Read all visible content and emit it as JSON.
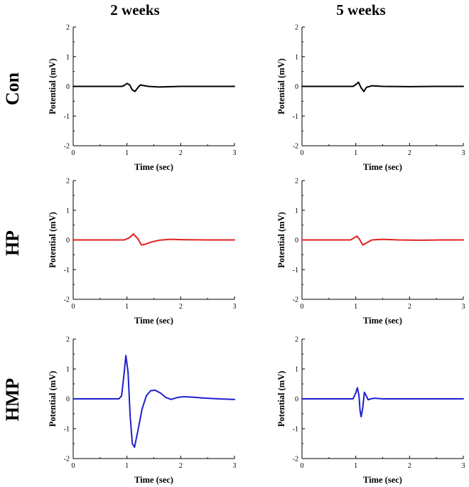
{
  "figure": {
    "column_titles": [
      "2 weeks",
      "5 weeks"
    ],
    "row_titles": [
      "Con",
      "HP",
      "HMP"
    ]
  },
  "chart_data": [
    {
      "type": "line",
      "panel": "Con - 2 weeks",
      "xlabel": "Time (sec)",
      "ylabel": "Potential (mV)",
      "xlim": [
        0,
        3
      ],
      "ylim": [
        -2,
        2
      ],
      "grid": false,
      "x_ticks": [
        0,
        1,
        2,
        3
      ],
      "y_ticks": [
        -2,
        -1,
        0,
        1,
        2
      ],
      "color": "#000000",
      "series": [
        {
          "x": [
            0,
            0.9,
            0.95,
            1.0,
            1.05,
            1.1,
            1.15,
            1.2,
            1.25,
            1.3,
            1.4,
            1.6,
            2.0,
            2.5,
            3.0
          ],
          "values": [
            0,
            0,
            0.03,
            0.1,
            0.05,
            -0.12,
            -0.17,
            -0.05,
            0.05,
            0.03,
            0,
            -0.02,
            0,
            0,
            0
          ]
        }
      ]
    },
    {
      "type": "line",
      "panel": "Con - 5 weeks",
      "xlabel": "Time (sec)",
      "ylabel": "Potential (mV)",
      "xlim": [
        0,
        3
      ],
      "ylim": [
        -2,
        2
      ],
      "grid": false,
      "x_ticks": [
        0,
        1,
        2,
        3
      ],
      "y_ticks": [
        -2,
        -1,
        0,
        1,
        2
      ],
      "color": "#000000",
      "series": [
        {
          "x": [
            0,
            0.95,
            1.0,
            1.05,
            1.1,
            1.15,
            1.2,
            1.3,
            1.5,
            2.0,
            2.5,
            3.0
          ],
          "values": [
            0,
            0,
            0.06,
            0.14,
            -0.05,
            -0.17,
            -0.03,
            0.02,
            0,
            -0.01,
            0,
            0
          ]
        }
      ]
    },
    {
      "type": "line",
      "panel": "HP - 2 weeks",
      "xlabel": "Time (sec)",
      "ylabel": "Potential (mV)",
      "xlim": [
        0,
        3
      ],
      "ylim": [
        -2,
        2
      ],
      "grid": false,
      "x_ticks": [
        0,
        1,
        2,
        3
      ],
      "y_ticks": [
        -2,
        -1,
        0,
        1,
        2
      ],
      "color": "#e02020",
      "series": [
        {
          "x": [
            0,
            0.95,
            1.05,
            1.12,
            1.2,
            1.27,
            1.35,
            1.45,
            1.6,
            1.8,
            2.0,
            2.5,
            3.0
          ],
          "values": [
            0,
            0,
            0.08,
            0.2,
            0.05,
            -0.17,
            -0.14,
            -0.07,
            -0.01,
            0.02,
            0.01,
            0,
            0
          ]
        }
      ]
    },
    {
      "type": "line",
      "panel": "HP - 5 weeks",
      "xlabel": "Time (sec)",
      "ylabel": "Potential (mV)",
      "xlim": [
        0,
        3
      ],
      "ylim": [
        -2,
        2
      ],
      "grid": false,
      "x_ticks": [
        0,
        1,
        2,
        3
      ],
      "y_ticks": [
        -2,
        -1,
        0,
        1,
        2
      ],
      "color": "#e02020",
      "series": [
        {
          "x": [
            0,
            0.9,
            0.97,
            1.02,
            1.07,
            1.13,
            1.2,
            1.3,
            1.5,
            1.8,
            2.2,
            2.6,
            3.0
          ],
          "values": [
            0,
            0,
            0.07,
            0.13,
            0.02,
            -0.17,
            -0.1,
            0,
            0.02,
            0,
            -0.01,
            0,
            0
          ]
        }
      ]
    },
    {
      "type": "line",
      "panel": "HMP - 2 weeks",
      "xlabel": "Time (sec)",
      "ylabel": "Potential (mV)",
      "xlim": [
        0,
        3
      ],
      "ylim": [
        -2,
        2
      ],
      "grid": false,
      "x_ticks": [
        0,
        1,
        2,
        3
      ],
      "y_ticks": [
        -2,
        -1,
        0,
        1,
        2
      ],
      "color": "#1f1fd0",
      "series": [
        {
          "x": [
            0,
            0.85,
            0.9,
            0.95,
            0.98,
            1.02,
            1.06,
            1.1,
            1.14,
            1.2,
            1.28,
            1.36,
            1.44,
            1.52,
            1.62,
            1.72,
            1.82,
            1.95,
            2.05,
            2.2,
            2.4,
            2.7,
            3.0
          ],
          "values": [
            0,
            0,
            0.1,
            0.9,
            1.45,
            0.9,
            -0.6,
            -1.5,
            -1.62,
            -1.1,
            -0.35,
            0.1,
            0.27,
            0.29,
            0.2,
            0.05,
            -0.02,
            0.05,
            0.07,
            0.06,
            0.03,
            0,
            -0.02
          ]
        }
      ]
    },
    {
      "type": "line",
      "panel": "HMP - 5 weeks",
      "xlabel": "Time (sec)",
      "ylabel": "Potential (mV)",
      "xlim": [
        0,
        3
      ],
      "ylim": [
        -2,
        2
      ],
      "grid": false,
      "x_ticks": [
        0,
        1,
        2,
        3
      ],
      "y_ticks": [
        -2,
        -1,
        0,
        1,
        2
      ],
      "color": "#1f1fd0",
      "series": [
        {
          "x": [
            0,
            0.95,
            1.0,
            1.03,
            1.06,
            1.08,
            1.1,
            1.13,
            1.16,
            1.19,
            1.23,
            1.28,
            1.35,
            1.5,
            2.0,
            2.5,
            3.0
          ],
          "values": [
            0,
            0,
            0.2,
            0.37,
            0.1,
            -0.4,
            -0.6,
            -0.3,
            0.22,
            0.12,
            -0.03,
            0,
            0.02,
            0,
            0,
            0,
            0
          ]
        }
      ]
    }
  ]
}
